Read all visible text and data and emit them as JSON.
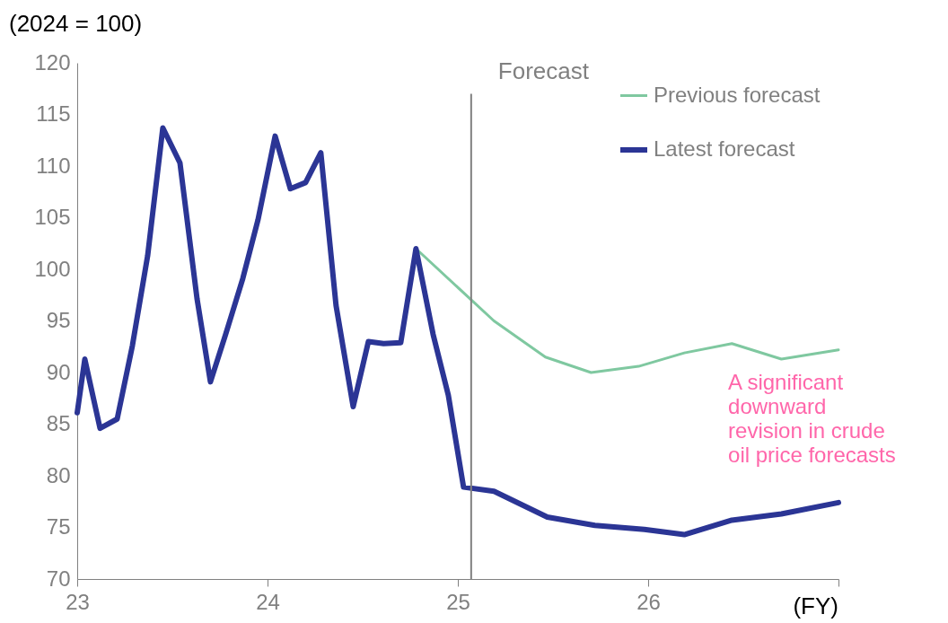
{
  "chart_data": {
    "type": "line",
    "xlabel": "(FY)",
    "ylabel": "(2024 = 100)",
    "xlim": [
      23,
      27
    ],
    "xticks": [
      23,
      24,
      25,
      26,
      {
        "value": 27,
        "label": null
      }
    ],
    "ylim": [
      70,
      120
    ],
    "yticks": [
      70,
      75,
      80,
      85,
      90,
      95,
      100,
      105,
      110,
      115,
      120
    ],
    "grid": false,
    "legend": "top right",
    "marker": "none",
    "line_style": "solid",
    "ref_lines": [
      {
        "axis": "x",
        "value": 25.07,
        "label": "Forecast",
        "color": "#808080"
      }
    ],
    "annotations": [
      "A significant\ndownward\nrevision in crude\noil price forecasts"
    ],
    "series": [
      {
        "name": "Previous forecast",
        "color": "#7fc8a0",
        "x": [
          24.78,
          25.19,
          25.46,
          25.7,
          25.95,
          26.19,
          26.44,
          26.7,
          27.0
        ],
        "values": [
          102.0,
          95.0,
          91.5,
          90.0,
          90.6,
          91.9,
          92.8,
          91.3,
          92.2
        ]
      },
      {
        "name": "Latest forecast",
        "color": "#2b3595",
        "x": [
          23.0,
          23.04,
          23.12,
          23.21,
          23.29,
          23.37,
          23.45,
          23.54,
          23.63,
          23.7,
          23.78,
          23.87,
          23.95,
          24.04,
          24.12,
          24.2,
          24.28,
          24.36,
          24.45,
          24.53,
          24.61,
          24.7,
          24.78,
          24.87,
          24.95,
          25.03,
          25.19,
          25.47,
          25.72,
          25.98,
          26.19,
          26.44,
          26.7,
          27.0
        ],
        "values": [
          86.1,
          91.3,
          84.6,
          85.5,
          92.6,
          101.3,
          113.7,
          110.3,
          97.1,
          89.1,
          93.7,
          99.1,
          104.8,
          112.9,
          107.8,
          108.4,
          111.3,
          96.5,
          86.7,
          93.0,
          92.8,
          92.9,
          102.0,
          93.7,
          87.8,
          78.9,
          78.5,
          76.0,
          75.2,
          74.8,
          74.3,
          75.7,
          76.3,
          77.4
        ]
      }
    ]
  }
}
